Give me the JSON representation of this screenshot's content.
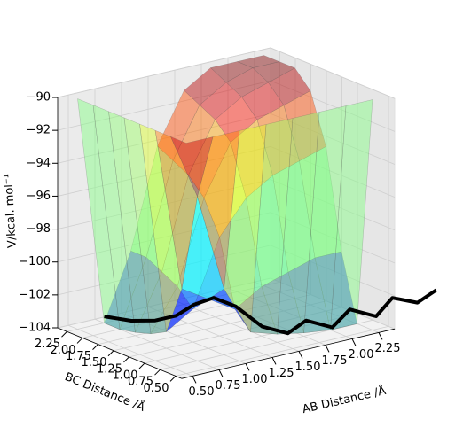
{
  "chart_data": {
    "type": "surface3d",
    "xlabel": "AB Distance /Å",
    "ylabel": "BC Distance /Å",
    "zlabel": "V/kcal. mol⁻¹",
    "x": [
      0.5,
      0.75,
      1.0,
      1.25,
      1.5,
      1.75,
      2.0,
      2.25
    ],
    "y": [
      0.5,
      0.75,
      1.0,
      1.25,
      1.5,
      1.75,
      2.0,
      2.25
    ],
    "z": [
      [
        -90,
        -90,
        -90,
        -90,
        -90,
        -90,
        -90,
        -90
      ],
      [
        -90,
        -94,
        -100,
        -103,
        -103.5,
        -103.8,
        -104,
        -104
      ],
      [
        -90,
        -100,
        -101,
        -102,
        -101,
        -100.5,
        -100,
        -100
      ],
      [
        -90,
        -103,
        -102,
        -98,
        -96,
        -95,
        -94.5,
        -94
      ],
      [
        -90,
        -103.5,
        -101,
        -96,
        -93,
        -92,
        -91.5,
        -91
      ],
      [
        -90,
        -103.8,
        -100.5,
        -95,
        -92,
        -91,
        -90.5,
        -90
      ],
      [
        -90,
        -104,
        -100,
        -94.5,
        -91.5,
        -90.5,
        -90,
        -90
      ],
      [
        -90,
        -104,
        -100,
        -94,
        -91,
        -90,
        -90,
        -90
      ]
    ],
    "xlim": [
      0.4,
      2.4
    ],
    "ylim": [
      0.4,
      2.4
    ],
    "zlim": [
      -104,
      -90
    ],
    "xticks": [
      {
        "value": 0.5,
        "label": "0.50"
      },
      {
        "value": 0.75,
        "label": "0.75"
      },
      {
        "value": 1.0,
        "label": "1.00"
      },
      {
        "value": 1.25,
        "label": "1.25"
      },
      {
        "value": 1.5,
        "label": "1.50"
      },
      {
        "value": 1.75,
        "label": "1.75"
      },
      {
        "value": 2.0,
        "label": "2.00"
      },
      {
        "value": 2.25,
        "label": "2.25"
      }
    ],
    "yticks": [
      {
        "value": 0.5,
        "label": "0.50"
      },
      {
        "value": 0.75,
        "label": "0.75"
      },
      {
        "value": 1.0,
        "label": "1.00"
      },
      {
        "value": 1.25,
        "label": "1.25"
      },
      {
        "value": 1.5,
        "label": "1.50"
      },
      {
        "value": 1.75,
        "label": "1.75"
      },
      {
        "value": 2.0,
        "label": "2.00"
      },
      {
        "value": 2.25,
        "label": "2.25"
      }
    ],
    "zticks": [
      {
        "value": -90,
        "label": "−90"
      },
      {
        "value": -92,
        "label": "−92"
      },
      {
        "value": -94,
        "label": "−94"
      },
      {
        "value": -96,
        "label": "−96"
      },
      {
        "value": -98,
        "label": "−98"
      },
      {
        "value": -100,
        "label": "−100"
      },
      {
        "value": -102,
        "label": "−102"
      },
      {
        "value": -104,
        "label": "−104"
      }
    ],
    "trajectory": {
      "color": "#000000",
      "x": [
        0.75,
        0.8,
        0.85,
        0.9,
        0.95,
        1.05,
        1.2,
        1.4,
        1.6,
        1.8,
        2.0,
        2.2,
        2.4,
        2.6,
        2.8,
        3.0
      ],
      "y": [
        2.25,
        1.9,
        1.6,
        1.35,
        1.15,
        1.0,
        0.9,
        0.82,
        0.75,
        0.8,
        0.72,
        0.78,
        0.7,
        0.78,
        0.72,
        0.76
      ],
      "z": [
        -103.6,
        -103.4,
        -103.0,
        -102.4,
        -101.5,
        -101.0,
        -101.6,
        -103.0,
        -103.6,
        -103.2,
        -103.8,
        -103.1,
        -103.7,
        -103.0,
        -103.5,
        -103.1
      ]
    },
    "grid": true
  }
}
